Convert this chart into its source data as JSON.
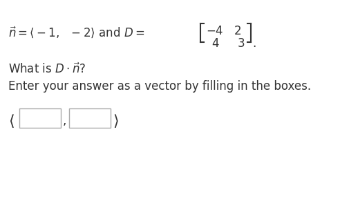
{
  "bg_color": "#ffffff",
  "text_color": "#333333",
  "line1_left": "$\\vec{n} = \\langle -1,\\ \\ -2\\rangle$ and $D=$",
  "matrix_row1": "$-4\\quad 2$",
  "matrix_row2": "$4\\quad\\ \\ 3$",
  "line2": "What is $D\\cdot\\vec{n}$?",
  "line3": "Enter your answer as a vector by filling in the boxes.",
  "fontsize": 12,
  "box_edge_color": "#aaaaaa",
  "period": "."
}
